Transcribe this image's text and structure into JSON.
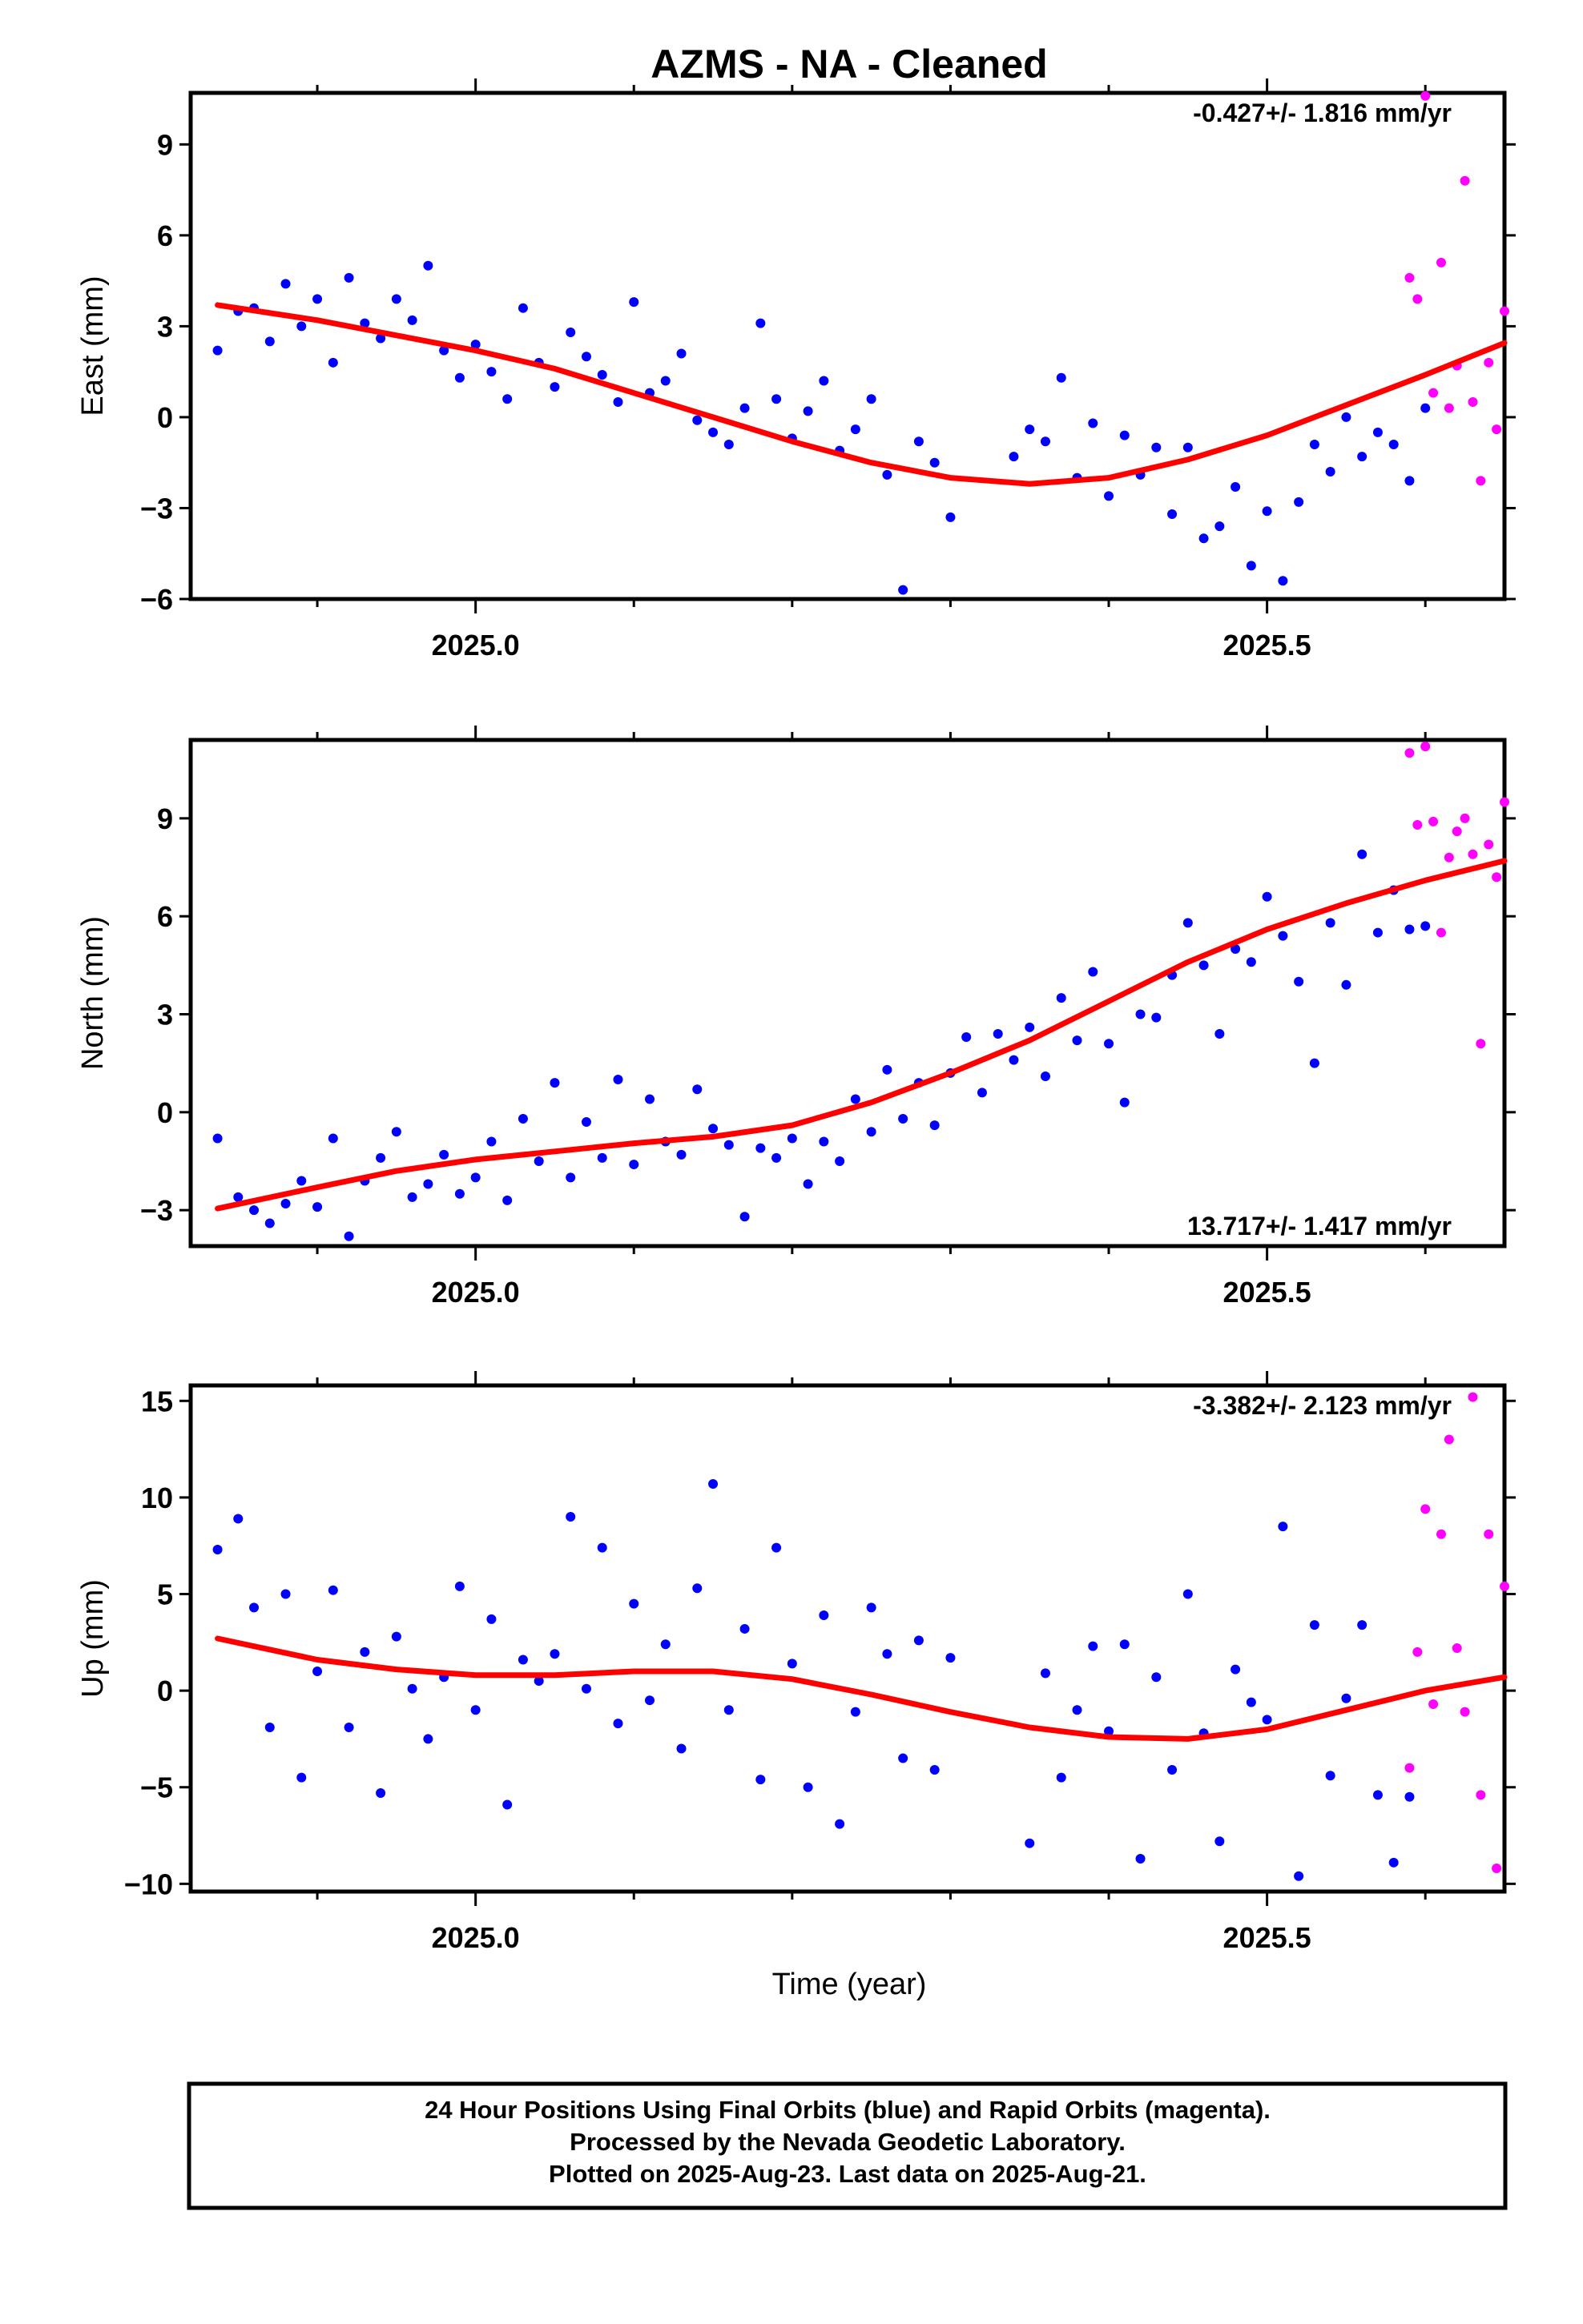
{
  "title": "AZMS  - NA - Cleaned",
  "xlabel": "Time (year)",
  "x_tick_labels": [
    "2025.0",
    "2025.5"
  ],
  "colors": {
    "final": "#0000ff",
    "rapid": "#ff00ff",
    "fit": "#ff0000"
  },
  "footer": [
    "24 Hour Positions Using Final Orbits (blue) and Rapid Orbits (magenta).",
    "Processed by the Nevada Geodetic Laboratory.",
    "Plotted on 2025-Aug-23. Last data on 2025-Aug-21."
  ],
  "chart_data": [
    {
      "type": "scatter",
      "ylabel": "East (mm)",
      "rate": "-0.427+/- 1.816 mm/yr",
      "rate_position": "top-right",
      "xlim": [
        2024.82,
        2025.65
      ],
      "ylim": [
        -6.0,
        10.7
      ],
      "yticks": [
        -6,
        -3,
        0,
        3,
        6,
        9
      ],
      "ytick_labels": [
        "−6",
        "−3",
        "0",
        "3",
        "6",
        "9"
      ],
      "x_ticks": [
        2025.0,
        2025.5
      ],
      "x_minor_ticks": [
        2024.9,
        2025.1,
        2025.2,
        2025.3,
        2025.4,
        2025.6
      ],
      "fit": {
        "x": [
          2024.837,
          2024.9,
          2024.95,
          2025.0,
          2025.05,
          2025.1,
          2025.15,
          2025.2,
          2025.25,
          2025.3,
          2025.35,
          2025.4,
          2025.45,
          2025.5,
          2025.55,
          2025.6,
          2025.65
        ],
        "y": [
          3.7,
          3.2,
          2.7,
          2.2,
          1.6,
          0.8,
          0.0,
          -0.8,
          -1.5,
          -2.0,
          -2.2,
          -2.0,
          -1.4,
          -0.6,
          0.4,
          1.4,
          2.45
        ]
      },
      "series": [
        {
          "name": "Final Orbits",
          "color": "#0000ff",
          "x": [
            2024.837,
            2024.85,
            2024.86,
            2024.87,
            2024.88,
            2024.89,
            2024.9,
            2024.91,
            2024.92,
            2024.93,
            2024.94,
            2024.95,
            2024.96,
            2024.97,
            2024.98,
            2024.99,
            2025.0,
            2025.01,
            2025.02,
            2025.03,
            2025.04,
            2025.05,
            2025.06,
            2025.07,
            2025.08,
            2025.09,
            2025.1,
            2025.11,
            2025.12,
            2025.13,
            2025.14,
            2025.15,
            2025.16,
            2025.17,
            2025.18,
            2025.19,
            2025.2,
            2025.21,
            2025.22,
            2025.23,
            2025.24,
            2025.25,
            2025.26,
            2025.27,
            2025.28,
            2025.29,
            2025.3,
            2025.34,
            2025.35,
            2025.36,
            2025.37,
            2025.38,
            2025.39,
            2025.4,
            2025.41,
            2025.42,
            2025.43,
            2025.44,
            2025.45,
            2025.46,
            2025.47,
            2025.48,
            2025.49,
            2025.5,
            2025.51,
            2025.52,
            2025.53,
            2025.54,
            2025.55,
            2025.56,
            2025.57,
            2025.58,
            2025.59,
            2025.6
          ],
          "y": [
            2.2,
            3.5,
            3.6,
            2.5,
            4.4,
            3.0,
            3.9,
            1.8,
            4.6,
            3.1,
            2.6,
            3.9,
            3.2,
            5.0,
            2.2,
            1.3,
            2.4,
            1.5,
            0.6,
            3.6,
            1.8,
            1.0,
            2.8,
            2.0,
            1.4,
            0.5,
            3.8,
            0.8,
            1.2,
            2.1,
            -0.1,
            -0.5,
            -0.9,
            0.3,
            3.1,
            0.6,
            -0.7,
            0.2,
            1.2,
            -1.1,
            -0.4,
            0.6,
            -1.9,
            -5.7,
            -0.8,
            -1.5,
            -3.3,
            -1.3,
            -0.4,
            -0.8,
            1.3,
            -2.0,
            -0.2,
            -2.6,
            -0.6,
            -1.9,
            -1.0,
            -3.2,
            -1.0,
            -4.0,
            -3.6,
            -2.3,
            -4.9,
            -3.1,
            -5.4,
            -2.8,
            -0.9,
            -1.8,
            0.0,
            -1.3,
            -0.5,
            -0.9,
            -2.1,
            0.3
          ]
        },
        {
          "name": "Rapid Orbits",
          "color": "#ff00ff",
          "x": [
            2025.59,
            2025.595,
            2025.6,
            2025.605,
            2025.61,
            2025.615,
            2025.62,
            2025.625,
            2025.63,
            2025.635,
            2025.64,
            2025.645,
            2025.65
          ],
          "y": [
            4.6,
            3.9,
            10.6,
            0.8,
            5.1,
            0.3,
            1.7,
            7.8,
            0.5,
            -2.1,
            1.8,
            -0.4,
            3.5
          ]
        }
      ]
    },
    {
      "type": "scatter",
      "ylabel": "North (mm)",
      "rate": "13.717+/- 1.417 mm/yr",
      "rate_position": "bottom-right",
      "xlim": [
        2024.82,
        2025.65
      ],
      "ylim": [
        -4.1,
        11.4
      ],
      "yticks": [
        -3,
        0,
        3,
        6,
        9
      ],
      "ytick_labels": [
        "−3",
        "0",
        "3",
        "6",
        "9"
      ],
      "x_ticks": [
        2025.0,
        2025.5
      ],
      "x_minor_ticks": [
        2024.9,
        2025.1,
        2025.2,
        2025.3,
        2025.4,
        2025.6
      ],
      "fit": {
        "x": [
          2024.837,
          2024.9,
          2024.95,
          2025.0,
          2025.05,
          2025.1,
          2025.15,
          2025.2,
          2025.25,
          2025.3,
          2025.35,
          2025.4,
          2025.45,
          2025.5,
          2025.55,
          2025.6,
          2025.65
        ],
        "y": [
          -2.95,
          -2.3,
          -1.8,
          -1.45,
          -1.2,
          -0.95,
          -0.75,
          -0.4,
          0.3,
          1.2,
          2.2,
          3.4,
          4.6,
          5.6,
          6.4,
          7.1,
          7.7
        ]
      },
      "series": [
        {
          "name": "Final Orbits",
          "color": "#0000ff",
          "x": [
            2024.837,
            2024.85,
            2024.86,
            2024.87,
            2024.88,
            2024.89,
            2024.9,
            2024.91,
            2024.92,
            2024.93,
            2024.94,
            2024.95,
            2024.96,
            2024.97,
            2024.98,
            2024.99,
            2025.0,
            2025.01,
            2025.02,
            2025.03,
            2025.04,
            2025.05,
            2025.06,
            2025.07,
            2025.08,
            2025.09,
            2025.1,
            2025.11,
            2025.12,
            2025.13,
            2025.14,
            2025.15,
            2025.16,
            2025.17,
            2025.18,
            2025.19,
            2025.2,
            2025.21,
            2025.22,
            2025.23,
            2025.24,
            2025.25,
            2025.26,
            2025.27,
            2025.28,
            2025.29,
            2025.3,
            2025.31,
            2025.32,
            2025.33,
            2025.34,
            2025.35,
            2025.36,
            2025.37,
            2025.38,
            2025.39,
            2025.4,
            2025.41,
            2025.42,
            2025.43,
            2025.44,
            2025.45,
            2025.46,
            2025.47,
            2025.48,
            2025.49,
            2025.5,
            2025.51,
            2025.52,
            2025.53,
            2025.54,
            2025.55,
            2025.56,
            2025.57,
            2025.58,
            2025.59,
            2025.6
          ],
          "y": [
            -0.8,
            -2.6,
            -3.0,
            -3.4,
            -2.8,
            -2.1,
            -2.9,
            -0.8,
            -3.8,
            -2.1,
            -1.4,
            -0.6,
            -2.6,
            -2.2,
            -1.3,
            -2.5,
            -2.0,
            -0.9,
            -2.7,
            -0.2,
            -1.5,
            0.9,
            -2.0,
            -0.3,
            -1.4,
            1.0,
            -1.6,
            0.4,
            -0.9,
            -1.3,
            0.7,
            -0.5,
            -1.0,
            -3.2,
            -1.1,
            -1.4,
            -0.8,
            -2.2,
            -0.9,
            -1.5,
            0.4,
            -0.6,
            1.3,
            -0.2,
            0.9,
            -0.4,
            1.2,
            2.3,
            0.6,
            2.4,
            1.6,
            2.6,
            1.1,
            3.5,
            2.2,
            4.3,
            2.1,
            0.3,
            3.0,
            2.9,
            4.2,
            5.8,
            4.5,
            2.4,
            5.0,
            4.6,
            6.6,
            5.4,
            4.0,
            1.5,
            5.8,
            3.9,
            7.9,
            5.5,
            6.8,
            5.6,
            5.7
          ]
        },
        {
          "name": "Rapid Orbits",
          "color": "#ff00ff",
          "x": [
            2025.59,
            2025.595,
            2025.6,
            2025.605,
            2025.61,
            2025.615,
            2025.62,
            2025.625,
            2025.63,
            2025.635,
            2025.64,
            2025.645,
            2025.65
          ],
          "y": [
            11.0,
            8.8,
            11.2,
            8.9,
            5.5,
            7.8,
            8.6,
            9.0,
            7.9,
            2.1,
            8.2,
            7.2,
            9.5
          ]
        }
      ]
    },
    {
      "type": "scatter",
      "ylabel": "Up (mm)",
      "rate": "-3.382+/- 2.123 mm/yr",
      "rate_position": "top-right",
      "xlim": [
        2024.82,
        2025.65
      ],
      "ylim": [
        -10.4,
        15.8
      ],
      "yticks": [
        -10,
        -5,
        0,
        5,
        10,
        15
      ],
      "ytick_labels": [
        "−10",
        "−5",
        "0",
        "5",
        "10",
        "15"
      ],
      "x_ticks": [
        2025.0,
        2025.5
      ],
      "x_minor_ticks": [
        2024.9,
        2025.1,
        2025.2,
        2025.3,
        2025.4,
        2025.6
      ],
      "fit": {
        "x": [
          2024.837,
          2024.9,
          2024.95,
          2025.0,
          2025.05,
          2025.1,
          2025.15,
          2025.2,
          2025.25,
          2025.3,
          2025.35,
          2025.4,
          2025.45,
          2025.5,
          2025.55,
          2025.6,
          2025.65
        ],
        "y": [
          2.7,
          1.6,
          1.1,
          0.8,
          0.8,
          1.0,
          1.0,
          0.6,
          -0.2,
          -1.1,
          -1.9,
          -2.4,
          -2.5,
          -2.0,
          -1.0,
          0.0,
          0.7
        ]
      },
      "series": [
        {
          "name": "Final Orbits",
          "color": "#0000ff",
          "x": [
            2024.837,
            2024.85,
            2024.86,
            2024.87,
            2024.88,
            2024.89,
            2024.9,
            2024.91,
            2024.92,
            2024.93,
            2024.94,
            2024.95,
            2024.96,
            2024.97,
            2024.98,
            2024.99,
            2025.0,
            2025.01,
            2025.02,
            2025.03,
            2025.04,
            2025.05,
            2025.06,
            2025.07,
            2025.08,
            2025.09,
            2025.1,
            2025.11,
            2025.12,
            2025.13,
            2025.14,
            2025.15,
            2025.16,
            2025.17,
            2025.18,
            2025.19,
            2025.2,
            2025.21,
            2025.22,
            2025.23,
            2025.24,
            2025.25,
            2025.26,
            2025.27,
            2025.28,
            2025.29,
            2025.3,
            2025.35,
            2025.36,
            2025.37,
            2025.38,
            2025.39,
            2025.4,
            2025.41,
            2025.42,
            2025.43,
            2025.44,
            2025.45,
            2025.46,
            2025.47,
            2025.48,
            2025.49,
            2025.5,
            2025.51,
            2025.52,
            2025.53,
            2025.54,
            2025.55,
            2025.56,
            2025.57,
            2025.58,
            2025.59
          ],
          "y": [
            7.3,
            8.9,
            4.3,
            -1.9,
            5.0,
            -4.5,
            1.0,
            5.2,
            -1.9,
            2.0,
            -5.3,
            2.8,
            0.1,
            -2.5,
            0.7,
            5.4,
            -1.0,
            3.7,
            -5.9,
            1.6,
            0.5,
            1.9,
            9.0,
            0.1,
            7.4,
            -1.7,
            4.5,
            -0.5,
            2.4,
            -3.0,
            5.3,
            10.7,
            -1.0,
            3.2,
            -4.6,
            7.4,
            1.4,
            -5.0,
            3.9,
            -6.9,
            -1.1,
            4.3,
            1.9,
            -3.5,
            2.6,
            -4.1,
            1.7,
            -7.9,
            0.9,
            -4.5,
            -1.0,
            2.3,
            -2.1,
            2.4,
            -8.7,
            0.7,
            -4.1,
            5.0,
            -2.2,
            -7.8,
            1.1,
            -0.6,
            -1.5,
            8.5,
            -9.6,
            3.4,
            -4.4,
            -0.4,
            3.4,
            -5.4,
            -8.9,
            -5.5
          ]
        },
        {
          "name": "Rapid Orbits",
          "color": "#ff00ff",
          "x": [
            2025.59,
            2025.595,
            2025.6,
            2025.605,
            2025.61,
            2025.615,
            2025.62,
            2025.625,
            2025.63,
            2025.635,
            2025.64,
            2025.645,
            2025.65
          ],
          "y": [
            -4.0,
            2.0,
            9.4,
            -0.7,
            8.1,
            13.0,
            2.2,
            -1.1,
            15.2,
            -5.4,
            8.1,
            -9.2,
            5.4
          ]
        }
      ]
    }
  ]
}
